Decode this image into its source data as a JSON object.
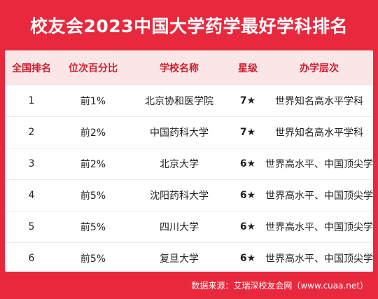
{
  "title": "校友会2023中国大学药学最好学科排名",
  "columns": [
    "全国排名",
    "位次百分比",
    "学校名称",
    "星级",
    "办学层次"
  ],
  "rows": [
    {
      "rank": "1",
      "pct": "前1%",
      "school": "北京协和医学院",
      "stars": "7★",
      "level": "世界知名高水平学科"
    },
    {
      "rank": "2",
      "pct": "前2%",
      "school": "中国药科大学",
      "stars": "7★",
      "level": "世界知名高水平学科"
    },
    {
      "rank": "3",
      "pct": "前2%",
      "school": "北京大学",
      "stars": "6★",
      "level": "世界高水平、中国顶尖学科"
    },
    {
      "rank": "4",
      "pct": "前5%",
      "school": "沈阳药科大学",
      "stars": "6★",
      "level": "世界高水平、中国顶尖学科"
    },
    {
      "rank": "5",
      "pct": "前5%",
      "school": "四川大学",
      "stars": "6★",
      "level": "世界高水平、中国顶尖学科"
    },
    {
      "rank": "6",
      "pct": "前5%",
      "school": "复旦大学",
      "stars": "6★",
      "level": "世界高水平、中国顶尖学科"
    }
  ],
  "footer": "数据来源：艾瑞深校友会网（www.cuaa.net）",
  "colors": {
    "brand_red": "#e8283d",
    "header_bg": "#fbe6e7",
    "header_text": "#cf1f2e"
  }
}
